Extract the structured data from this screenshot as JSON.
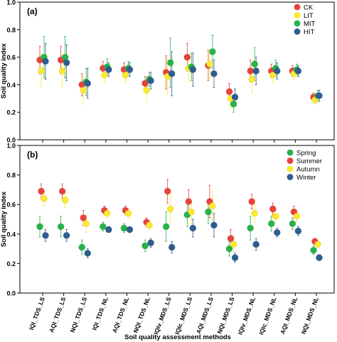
{
  "chart_data": [
    {
      "type": "scatter",
      "panel_label": "(a)",
      "ylabel": "Soil quality index",
      "ylim": [
        0,
        1.0
      ],
      "yticks": [
        0.0,
        0.2,
        0.4,
        0.6,
        0.8,
        1.0
      ],
      "ytick_labels": [
        "0.0",
        "0.2",
        "0.4",
        "0.6",
        "0.8",
        "1.0"
      ],
      "legend_position": "top-right",
      "series": [
        {
          "name": "CK",
          "color": "#e8423a",
          "values": [
            0.58,
            0.58,
            0.4,
            0.52,
            0.51,
            0.41,
            0.49,
            0.6,
            0.54,
            0.35,
            0.5,
            0.5,
            0.5,
            0.31
          ],
          "errors": [
            0.1,
            0.1,
            0.08,
            0.05,
            0.05,
            0.05,
            0.12,
            0.1,
            0.11,
            0.06,
            0.08,
            0.05,
            0.04,
            0.03
          ]
        },
        {
          "name": "LIT",
          "color": "#fbe92d",
          "values": [
            0.5,
            0.5,
            0.36,
            0.47,
            0.47,
            0.36,
            0.46,
            0.52,
            0.55,
            0.3,
            0.44,
            0.47,
            0.48,
            0.29
          ],
          "errors": [
            0.12,
            0.12,
            0.1,
            0.05,
            0.05,
            0.08,
            0.13,
            0.1,
            0.1,
            0.07,
            0.1,
            0.05,
            0.04,
            0.03
          ]
        },
        {
          "name": "MIT",
          "color": "#27b24a",
          "values": [
            0.6,
            0.6,
            0.42,
            0.53,
            0.52,
            0.44,
            0.56,
            0.53,
            0.64,
            0.26,
            0.55,
            0.52,
            0.51,
            0.32
          ],
          "errors": [
            0.15,
            0.15,
            0.1,
            0.06,
            0.05,
            0.05,
            0.18,
            0.1,
            0.12,
            0.06,
            0.12,
            0.06,
            0.04,
            0.04
          ]
        },
        {
          "name": "HIT",
          "color": "#2e5d8f",
          "values": [
            0.57,
            0.56,
            0.41,
            0.51,
            0.51,
            0.43,
            0.48,
            0.51,
            0.48,
            0.31,
            0.5,
            0.5,
            0.5,
            0.32
          ],
          "errors": [
            0.13,
            0.13,
            0.11,
            0.05,
            0.05,
            0.06,
            0.16,
            0.12,
            0.1,
            0.06,
            0.1,
            0.06,
            0.04,
            0.04
          ]
        }
      ]
    },
    {
      "type": "scatter",
      "panel_label": "(b)",
      "ylabel": "Soil quality index",
      "xlabel": "Soil quality assessment methods",
      "ylim": [
        0,
        1.0
      ],
      "yticks": [
        0.0,
        0.2,
        0.4,
        0.6,
        0.8,
        1.0
      ],
      "ytick_labels": [
        "0.0",
        "0.2",
        "0.4",
        "0.6",
        "0.8",
        "1.0"
      ],
      "legend_position": "top-right",
      "categories": [
        "IQI_TDS_LS",
        "AQI_TDS_LS",
        "NQI_TDS_LS",
        "IQI_TDS_NL",
        "AQI_TDS_NL",
        "NQI_TDS_NL",
        "IQIv_MDS_LS",
        "IQIc_MDS_LS",
        "AQI_MDS_LS",
        "NQI_MDS_LS",
        "IQIv_MDS_NL",
        "IQIc_MDS_NL",
        "AQI_MDS_NL",
        "NQI_MDS_NL"
      ],
      "series": [
        {
          "name": "Spring",
          "color": "#27b24a",
          "values": [
            0.45,
            0.45,
            0.31,
            0.45,
            0.44,
            0.32,
            0.45,
            0.53,
            0.55,
            0.3,
            0.44,
            0.47,
            0.47,
            0.29
          ],
          "errors": [
            0.07,
            0.07,
            0.05,
            0.03,
            0.03,
            0.04,
            0.1,
            0.08,
            0.08,
            0.05,
            0.08,
            0.05,
            0.04,
            0.03
          ]
        },
        {
          "name": "Summer",
          "color": "#e8423a",
          "values": [
            0.69,
            0.69,
            0.51,
            0.56,
            0.56,
            0.48,
            0.69,
            0.62,
            0.62,
            0.37,
            0.62,
            0.57,
            0.55,
            0.35
          ],
          "errors": [
            0.05,
            0.05,
            0.05,
            0.03,
            0.03,
            0.03,
            0.08,
            0.08,
            0.11,
            0.06,
            0.05,
            0.04,
            0.04,
            0.02
          ]
        },
        {
          "name": "Autumn",
          "color": "#fbe92d",
          "values": [
            0.64,
            0.63,
            0.47,
            0.54,
            0.54,
            0.46,
            0.57,
            0.55,
            0.59,
            0.33,
            0.54,
            0.52,
            0.52,
            0.33
          ],
          "errors": [
            0.05,
            0.05,
            0.06,
            0.03,
            0.03,
            0.03,
            0.09,
            0.08,
            0.1,
            0.05,
            0.06,
            0.04,
            0.04,
            0.02
          ]
        },
        {
          "name": "Winter",
          "color": "#2e5d8f",
          "values": [
            0.39,
            0.39,
            0.27,
            0.43,
            0.43,
            0.34,
            0.31,
            0.44,
            0.46,
            0.24,
            0.33,
            0.41,
            0.42,
            0.24
          ],
          "errors": [
            0.04,
            0.04,
            0.03,
            0.02,
            0.02,
            0.03,
            0.04,
            0.06,
            0.08,
            0.03,
            0.04,
            0.03,
            0.03,
            0.02
          ]
        }
      ]
    }
  ]
}
